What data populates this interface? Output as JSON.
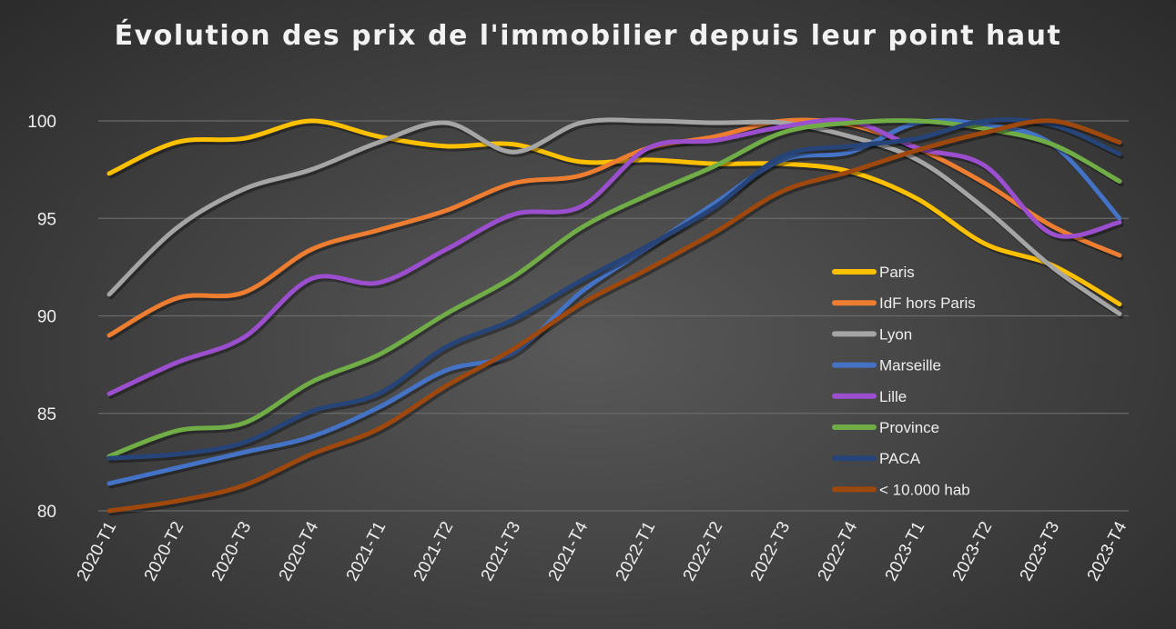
{
  "chart_data": {
    "type": "line",
    "title": "Évolution des prix de l'immobilier depuis leur point haut",
    "xlabel": "",
    "ylabel": "",
    "ylim": [
      80,
      100
    ],
    "yticks": [
      80,
      85,
      90,
      95,
      100
    ],
    "grid": true,
    "legend_position": "center-right",
    "categories": [
      "2020-T1",
      "2020-T2",
      "2020-T3",
      "2020-T4",
      "2021-T1",
      "2021-T2",
      "2021-T3",
      "2021-T4",
      "2022-T1",
      "2022-T2",
      "2022-T3",
      "2022-T4",
      "2023-T1",
      "2023-T2",
      "2023-T3",
      "2023-T4"
    ],
    "series": [
      {
        "name": "Paris",
        "color": "#ffc000",
        "values": [
          97.3,
          98.9,
          99.1,
          100,
          99.2,
          98.7,
          98.8,
          97.9,
          98.0,
          97.8,
          97.8,
          97.4,
          96.0,
          93.7,
          92.6,
          90.6
        ]
      },
      {
        "name": "IdF hors Paris",
        "color": "#ed7d31",
        "values": [
          89.0,
          90.9,
          91.2,
          93.4,
          94.4,
          95.4,
          96.8,
          97.2,
          98.6,
          99.2,
          100,
          99.8,
          98.6,
          96.8,
          94.6,
          93.1
        ]
      },
      {
        "name": "Lyon",
        "color": "#a5a5a5",
        "values": [
          91.1,
          94.5,
          96.5,
          97.5,
          98.9,
          99.9,
          98.4,
          99.9,
          100,
          99.9,
          99.9,
          99.2,
          98.0,
          95.5,
          92.5,
          90.1
        ]
      },
      {
        "name": "Marseille",
        "color": "#4472c4",
        "values": [
          81.4,
          82.2,
          83.0,
          83.8,
          85.3,
          87.2,
          88.1,
          91.2,
          93.5,
          95.8,
          98.0,
          98.4,
          99.9,
          99.8,
          98.8,
          95.0
        ]
      },
      {
        "name": "Lille",
        "color": "#9b4fcf",
        "values": [
          86.0,
          87.6,
          88.9,
          91.9,
          91.7,
          93.4,
          95.2,
          95.6,
          98.6,
          99.0,
          99.7,
          100,
          98.6,
          97.7,
          94.2,
          94.8
        ]
      },
      {
        "name": "Province",
        "color": "#70ad47",
        "values": [
          82.8,
          84.1,
          84.5,
          86.6,
          88.0,
          90.1,
          92.0,
          94.5,
          96.2,
          97.7,
          99.4,
          99.9,
          100,
          99.6,
          98.8,
          96.9
        ]
      },
      {
        "name": "PACA",
        "color": "#264478",
        "values": [
          82.7,
          82.9,
          83.5,
          85.1,
          86.0,
          88.4,
          89.8,
          91.8,
          93.6,
          95.6,
          98.2,
          98.7,
          99.1,
          100,
          99.8,
          98.3
        ]
      },
      {
        "name": "< 10.000 hab",
        "color": "#9e480e",
        "values": [
          80.0,
          80.5,
          81.3,
          82.9,
          84.2,
          86.4,
          88.3,
          90.6,
          92.4,
          94.3,
          96.4,
          97.4,
          98.5,
          99.4,
          100,
          98.9
        ]
      }
    ]
  }
}
